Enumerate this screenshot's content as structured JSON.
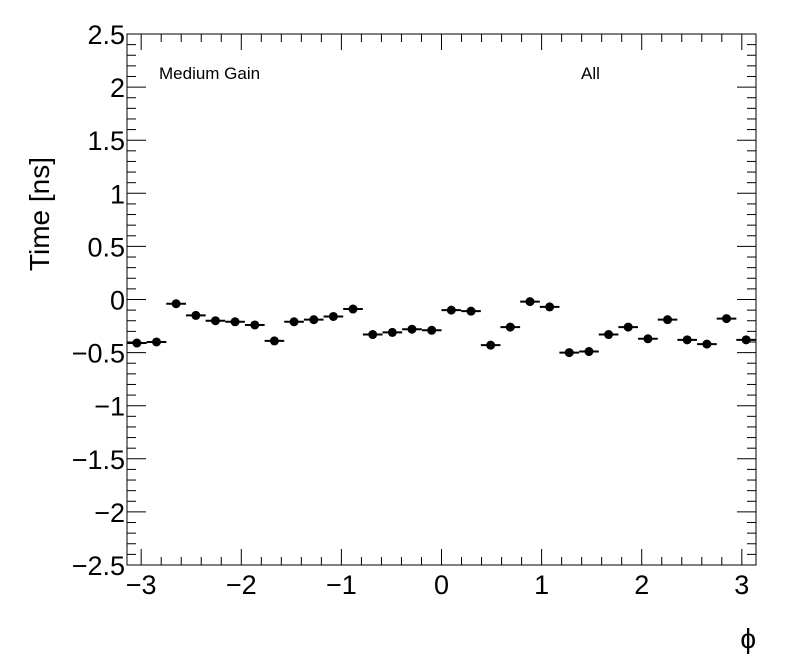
{
  "chart_data": {
    "type": "scatter",
    "title": "",
    "xlabel": "ϕ",
    "ylabel": "Time [ns]",
    "xlim": [
      -3.1416,
      3.1416
    ],
    "ylim": [
      -2.5,
      2.5
    ],
    "x_ticks": [
      -3,
      -2,
      -1,
      0,
      1,
      2,
      3
    ],
    "x_tick_labels": [
      "−3",
      "−2",
      "−1",
      "0",
      "1",
      "2",
      "3"
    ],
    "y_ticks": [
      -2.5,
      -2,
      -1.5,
      -1,
      -0.5,
      0,
      0.5,
      1,
      1.5,
      2,
      2.5
    ],
    "y_tick_labels": [
      "−2.5",
      "−2",
      "−1.5",
      "−1",
      "−0.5",
      "0",
      "0.5",
      "1",
      "1.5",
      "2",
      "2.5"
    ],
    "grid": false,
    "annotations": [
      "Medium Gain",
      "All"
    ],
    "marker_color": "#000000",
    "series": [
      {
        "bin_width": 0.1963,
        "x": [
          -3.043,
          -2.847,
          -2.651,
          -2.454,
          -2.258,
          -2.062,
          -1.865,
          -1.669,
          -1.473,
          -1.276,
          -1.08,
          -0.884,
          -0.687,
          -0.491,
          -0.295,
          -0.098,
          0.098,
          0.295,
          0.491,
          0.687,
          0.884,
          1.08,
          1.276,
          1.473,
          1.669,
          1.865,
          2.062,
          2.258,
          2.454,
          2.651,
          2.847,
          3.043
        ],
        "y": [
          -0.41,
          -0.4,
          -0.04,
          -0.15,
          -0.2,
          -0.21,
          -0.24,
          -0.39,
          -0.21,
          -0.19,
          -0.16,
          -0.09,
          -0.33,
          -0.31,
          -0.28,
          -0.29,
          -0.1,
          -0.11,
          -0.43,
          -0.26,
          -0.02,
          -0.07,
          -0.5,
          -0.49,
          -0.33,
          -0.26,
          -0.37,
          -0.19,
          -0.38,
          -0.42,
          -0.18,
          -0.38
        ]
      }
    ]
  }
}
